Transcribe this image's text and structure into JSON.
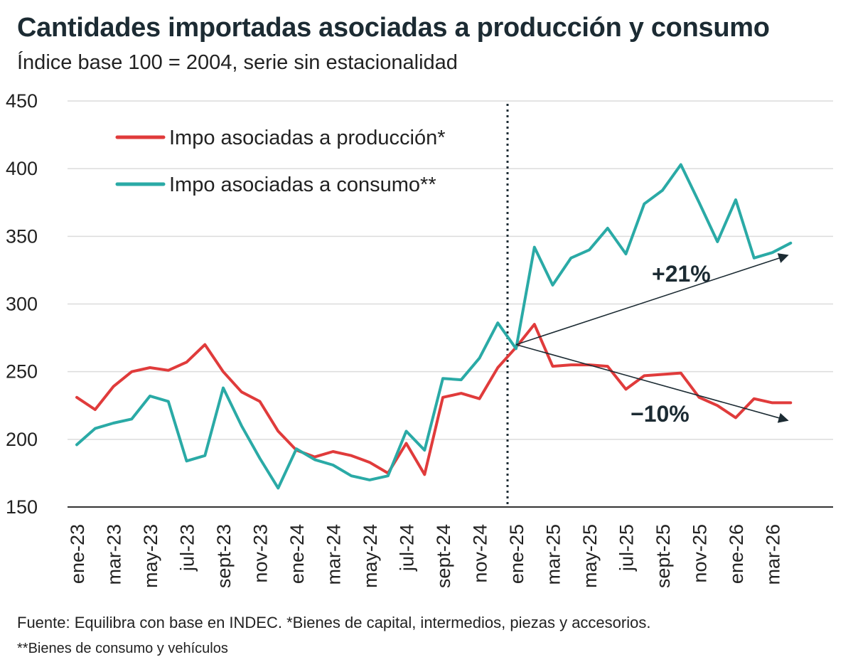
{
  "title": "Cantidades importadas asociadas a producción y consumo",
  "subtitle": "Índice base 100 = 2004, serie sin estacionalidad",
  "footnote_1": "Fuente: Equilibra con base en INDEC. *Bienes de capital, intermedios, piezas y accesorios.",
  "footnote_2": "**Bienes de consumo y vehículos",
  "colors": {
    "produccion": "#e03b3b",
    "consumo": "#2aaaa6",
    "grid": "#dcdcdc",
    "text": "#1c2b33"
  },
  "chart_data": {
    "type": "line",
    "x": [
      "ene-23",
      "feb-23",
      "mar-23",
      "abr-23",
      "may-23",
      "jun-23",
      "jul-23",
      "ago-23",
      "sept-23",
      "oct-23",
      "nov-23",
      "dic-23",
      "ene-24",
      "feb-24",
      "mar-24",
      "abr-24",
      "may-24",
      "jun-24",
      "jul-24",
      "ago-24",
      "sept-24",
      "oct-24",
      "nov-24",
      "dic-24",
      "ene-25",
      "feb-25",
      "mar-25",
      "abr-25",
      "may-25",
      "jun-25",
      "jul-25",
      "ago-25",
      "sept-25",
      "oct-25",
      "nov-25",
      "dic-25",
      "ene-26",
      "feb-26",
      "mar-26",
      "abr-26"
    ],
    "tick_labels": [
      "ene-23",
      "mar-23",
      "may-23",
      "jul-23",
      "sept-23",
      "nov-23",
      "ene-24",
      "mar-24",
      "may-24",
      "jul-24",
      "sept-24",
      "nov-24",
      "ene-25",
      "mar-25",
      "may-25",
      "jul-25",
      "sept-25",
      "nov-25",
      "ene-26",
      "mar-26"
    ],
    "ylim": [
      150,
      450
    ],
    "yticks": [
      150,
      200,
      250,
      300,
      350,
      400,
      450
    ],
    "grid": "horizontal",
    "legend_position": "top-left",
    "series": [
      {
        "name": "Impo asociadas a producción*",
        "values": [
          231,
          222,
          239,
          250,
          253,
          251,
          257,
          270,
          250,
          235,
          228,
          206,
          192,
          187,
          191,
          188,
          183,
          175,
          197,
          174,
          231,
          234,
          230,
          253,
          268,
          285,
          254,
          255,
          255,
          254,
          237,
          247,
          248,
          249,
          231,
          225,
          216,
          230,
          227,
          227
        ]
      },
      {
        "name": "Impo asociadas a consumo**",
        "values": [
          196,
          208,
          212,
          215,
          232,
          228,
          184,
          188,
          238,
          210,
          186,
          164,
          193,
          185,
          181,
          173,
          170,
          173,
          206,
          192,
          245,
          244,
          260,
          286,
          267,
          342,
          314,
          334,
          340,
          356,
          337,
          374,
          384,
          403,
          375,
          346,
          377,
          334,
          338,
          345
        ]
      }
    ],
    "vline_at": "ene-25",
    "annotations": [
      {
        "label": "+21%",
        "from": [
          "ene-25",
          270
        ],
        "to": [
          "abr-26",
          336
        ]
      },
      {
        "label": "-10%",
        "from": [
          "ene-25",
          270
        ],
        "to": [
          "abr-26",
          214
        ]
      }
    ]
  }
}
